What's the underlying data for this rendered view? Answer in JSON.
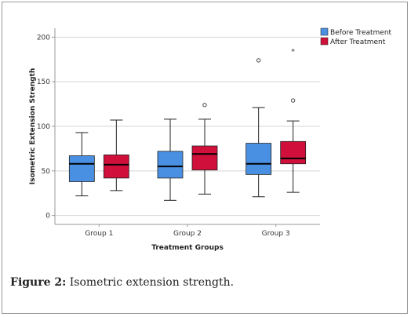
{
  "colors": {
    "before": "#4a90e2",
    "after": "#d0103a",
    "gridline": "#d4d4d4",
    "axis": "#999999"
  },
  "caption": {
    "label": "Figure 2:",
    "text": " Isometric extension strength."
  },
  "chart_data": {
    "type": "boxplot",
    "title": "",
    "xlabel": "Treatment Groups",
    "ylabel": "Isometric Extension Strength",
    "ylim": [
      -10,
      210
    ],
    "yticks": [
      0,
      50,
      100,
      150,
      200
    ],
    "grid": "horizontal",
    "legend_position": "top-right",
    "categories": [
      "Group 1",
      "Group 2",
      "Group 3"
    ],
    "series": [
      {
        "name": "Before Treatment",
        "color": "#4a90e2",
        "boxes": [
          {
            "min": 22,
            "q1": 38,
            "median": 58,
            "q3": 67,
            "max": 93,
            "outliers": [],
            "extremes": []
          },
          {
            "min": 17,
            "q1": 42,
            "median": 55,
            "q3": 72,
            "max": 108,
            "outliers": [],
            "extremes": []
          },
          {
            "min": 21,
            "q1": 46,
            "median": 58,
            "q3": 81,
            "max": 121,
            "outliers": [
              174
            ],
            "extremes": []
          }
        ]
      },
      {
        "name": "After Treatment",
        "color": "#d0103a",
        "boxes": [
          {
            "min": 28,
            "q1": 42,
            "median": 57,
            "q3": 68,
            "max": 107,
            "outliers": [],
            "extremes": []
          },
          {
            "min": 24,
            "q1": 51,
            "median": 69,
            "q3": 78,
            "max": 108,
            "outliers": [
              124
            ],
            "extremes": []
          },
          {
            "min": 26,
            "q1": 58,
            "median": 64,
            "q3": 83,
            "max": 106,
            "outliers": [
              129
            ],
            "extremes": [
              185
            ]
          }
        ]
      }
    ]
  }
}
